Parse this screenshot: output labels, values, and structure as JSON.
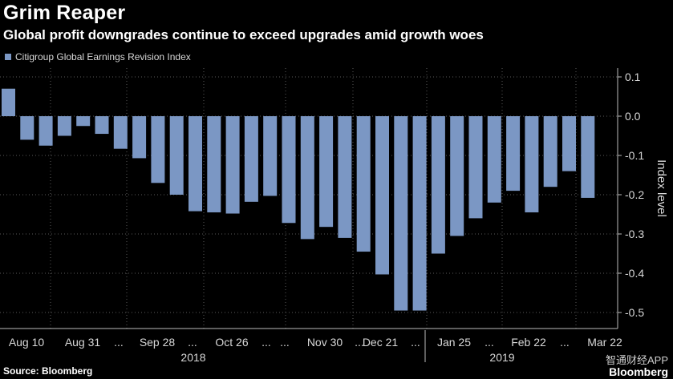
{
  "header": {
    "title": "Grim Reaper",
    "subtitle": "Global profit downgrades continue to exceed upgrades amid growth woes"
  },
  "footer": {
    "source": "Source: Bloomberg",
    "watermark": "智通财经APP",
    "logo": "Bloomberg"
  },
  "colors": {
    "bar": "#7b97c4",
    "grid": "#5a5a5a",
    "background": "#000000"
  },
  "chart_data": {
    "type": "bar",
    "title": "Grim Reaper",
    "subtitle": "Global profit downgrades continue to exceed upgrades amid growth woes",
    "series": [
      {
        "name": "Citigroup Global Earnings Revision Index",
        "values": [
          0.07,
          -0.06,
          -0.075,
          -0.05,
          -0.025,
          -0.045,
          -0.083,
          -0.107,
          -0.17,
          -0.2,
          -0.242,
          -0.245,
          -0.248,
          -0.218,
          -0.203,
          -0.272,
          -0.313,
          -0.282,
          -0.31,
          -0.345,
          -0.403,
          -0.495,
          -0.495,
          -0.35,
          -0.305,
          -0.26,
          -0.22,
          -0.19,
          -0.245,
          -0.18,
          -0.14,
          -0.208
        ]
      }
    ],
    "x_tick_labels": [
      "Aug 10",
      "Aug 31",
      "...",
      "Sep 28",
      "...",
      "Oct 26",
      "...",
      "...",
      "Nov 30",
      "...",
      "Dec 21",
      "...",
      "Jan 25",
      "...",
      "Feb 22",
      "...",
      "Mar 22"
    ],
    "year_labels": [
      "2018",
      "2019"
    ],
    "ylabel": "Index level",
    "y_ticks": [
      0.1,
      0.0,
      -0.1,
      -0.2,
      -0.3,
      -0.4,
      -0.5
    ],
    "y_tick_labels": [
      "0.1",
      "0.0",
      "-0.1",
      "-0.2",
      "-0.3",
      "-0.4",
      "-0.5"
    ],
    "ylim": [
      -0.55,
      0.12
    ],
    "grid": true,
    "legend_position": "top-left"
  }
}
